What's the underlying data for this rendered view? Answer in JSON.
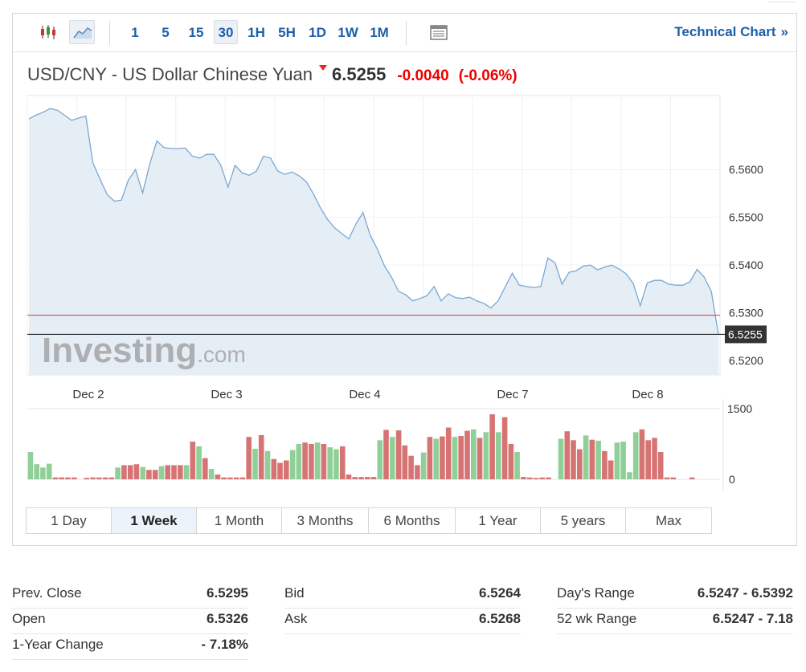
{
  "toolbar": {
    "chart_type_icons": [
      "candlestick-icon",
      "area-chart-icon"
    ],
    "selected_chart_type": "area-chart-icon",
    "intervals": [
      "1",
      "5",
      "15",
      "30",
      "1H",
      "5H",
      "1D",
      "1W",
      "1M"
    ],
    "selected_interval": "30",
    "settings_icon": "table-icon",
    "technical_link": "Technical Chart",
    "technical_arrow": "»"
  },
  "header": {
    "name": "USD/CNY - US Dollar Chinese Yuan",
    "last": "6.5255",
    "change": "-0.0040",
    "change_pct": "(-0.06%)",
    "direction_icon": "down-arrow-icon"
  },
  "watermark": {
    "brand": "Investing",
    "suffix": ".com"
  },
  "colors": {
    "line": "#7aa7d2",
    "area": "#e6eef5",
    "prev_close_line": "#d33",
    "last_line": "#222",
    "vol_up": "#8fcf98",
    "vol_down": "#d67373",
    "accent": "#1c5fab",
    "negative": "#e00"
  },
  "chart_data": {
    "type": "line",
    "title": "USD/CNY - US Dollar Chinese Yuan",
    "x_labels": [
      "Dec 2",
      "Dec 3",
      "Dec 4",
      "Dec 7",
      "Dec 8"
    ],
    "ylim": [
      6.517,
      6.5755
    ],
    "y_ticks": [
      "6.5600",
      "6.5500",
      "6.5400",
      "6.5300",
      "6.5200"
    ],
    "y_tick_values": [
      6.56,
      6.55,
      6.54,
      6.53,
      6.52
    ],
    "prev_close": 6.5295,
    "last_value": 6.5255,
    "last_label": "6.5255",
    "series": [
      {
        "values": [
          6.5706,
          6.5714,
          6.572,
          6.5728,
          6.5724,
          6.5714,
          6.5703,
          6.5708,
          6.5712,
          6.5614,
          6.558,
          6.5548,
          6.5534,
          6.5536,
          6.5578,
          6.56,
          6.5551,
          6.5612,
          6.566,
          6.5646,
          6.5644,
          6.5644,
          6.5645,
          6.5628,
          6.5624,
          6.5632,
          6.5632,
          6.5609,
          6.5563,
          6.5609,
          6.5593,
          6.5588,
          6.5597,
          6.5628,
          6.5624,
          6.5597,
          6.559,
          6.5595,
          6.5587,
          6.5575,
          6.555,
          6.552,
          6.5496,
          6.5478,
          6.5466,
          6.5455,
          6.5486,
          6.551,
          6.5463,
          6.5434,
          6.5399,
          6.5375,
          6.5345,
          6.5338,
          6.5325,
          6.533,
          6.5336,
          6.5355,
          6.5325,
          6.534,
          6.5332,
          6.533,
          6.5333,
          6.5325,
          6.532,
          6.531,
          6.5325,
          6.5354,
          6.5383,
          6.5358,
          6.5355,
          6.5353,
          6.5355,
          6.5415,
          6.5405,
          6.536,
          6.5385,
          6.5388,
          6.5398,
          6.54,
          6.539,
          6.5396,
          6.54,
          6.5392,
          6.5382,
          6.5362,
          6.5315,
          6.5363,
          6.5368,
          6.5368,
          6.536,
          6.5358,
          6.5358,
          6.5365,
          6.5391,
          6.5375,
          6.5345,
          6.5255
        ]
      }
    ],
    "volume": {
      "ylim": [
        0,
        1500
      ],
      "y_ticks": [
        "1500",
        "0"
      ],
      "y_tick_values": [
        1500,
        0
      ],
      "bars": [
        {
          "v": 580,
          "up": true
        },
        {
          "v": 320,
          "up": true
        },
        {
          "v": 250,
          "up": true
        },
        {
          "v": 330,
          "up": true
        },
        {
          "v": 40,
          "up": false
        },
        {
          "v": 40,
          "up": false
        },
        {
          "v": 40,
          "up": false
        },
        {
          "v": 40,
          "up": false
        },
        {
          "v": 0,
          "up": false
        },
        {
          "v": 30,
          "up": false
        },
        {
          "v": 40,
          "up": false
        },
        {
          "v": 40,
          "up": false
        },
        {
          "v": 40,
          "up": false
        },
        {
          "v": 40,
          "up": false
        },
        {
          "v": 250,
          "up": true
        },
        {
          "v": 300,
          "up": false
        },
        {
          "v": 300,
          "up": false
        },
        {
          "v": 320,
          "up": false
        },
        {
          "v": 260,
          "up": true
        },
        {
          "v": 200,
          "up": false
        },
        {
          "v": 200,
          "up": false
        },
        {
          "v": 280,
          "up": true
        },
        {
          "v": 300,
          "up": false
        },
        {
          "v": 300,
          "up": false
        },
        {
          "v": 300,
          "up": false
        },
        {
          "v": 300,
          "up": true
        },
        {
          "v": 800,
          "up": false
        },
        {
          "v": 700,
          "up": true
        },
        {
          "v": 450,
          "up": false
        },
        {
          "v": 220,
          "up": true
        },
        {
          "v": 100,
          "up": false
        },
        {
          "v": 40,
          "up": false
        },
        {
          "v": 40,
          "up": false
        },
        {
          "v": 40,
          "up": false
        },
        {
          "v": 40,
          "up": false
        },
        {
          "v": 900,
          "up": false
        },
        {
          "v": 650,
          "up": true
        },
        {
          "v": 940,
          "up": false
        },
        {
          "v": 600,
          "up": true
        },
        {
          "v": 430,
          "up": false
        },
        {
          "v": 350,
          "up": false
        },
        {
          "v": 400,
          "up": false
        },
        {
          "v": 620,
          "up": true
        },
        {
          "v": 750,
          "up": true
        },
        {
          "v": 780,
          "up": false
        },
        {
          "v": 750,
          "up": false
        },
        {
          "v": 780,
          "up": true
        },
        {
          "v": 750,
          "up": false
        },
        {
          "v": 680,
          "up": true
        },
        {
          "v": 640,
          "up": true
        },
        {
          "v": 700,
          "up": false
        },
        {
          "v": 100,
          "up": false
        },
        {
          "v": 50,
          "up": false
        },
        {
          "v": 50,
          "up": false
        },
        {
          "v": 50,
          "up": false
        },
        {
          "v": 50,
          "up": false
        },
        {
          "v": 830,
          "up": true
        },
        {
          "v": 1050,
          "up": false
        },
        {
          "v": 900,
          "up": true
        },
        {
          "v": 1040,
          "up": false
        },
        {
          "v": 720,
          "up": false
        },
        {
          "v": 500,
          "up": false
        },
        {
          "v": 300,
          "up": false
        },
        {
          "v": 570,
          "up": true
        },
        {
          "v": 900,
          "up": false
        },
        {
          "v": 860,
          "up": true
        },
        {
          "v": 910,
          "up": false
        },
        {
          "v": 1100,
          "up": false
        },
        {
          "v": 900,
          "up": true
        },
        {
          "v": 920,
          "up": false
        },
        {
          "v": 1030,
          "up": false
        },
        {
          "v": 1060,
          "up": true
        },
        {
          "v": 880,
          "up": false
        },
        {
          "v": 1000,
          "up": true
        },
        {
          "v": 1380,
          "up": false
        },
        {
          "v": 1000,
          "up": true
        },
        {
          "v": 1320,
          "up": false
        },
        {
          "v": 750,
          "up": false
        },
        {
          "v": 580,
          "up": true
        },
        {
          "v": 50,
          "up": false
        },
        {
          "v": 40,
          "up": false
        },
        {
          "v": 30,
          "up": false
        },
        {
          "v": 40,
          "up": false
        },
        {
          "v": 40,
          "up": false
        },
        {
          "v": 0,
          "up": false
        },
        {
          "v": 860,
          "up": true
        },
        {
          "v": 1020,
          "up": false
        },
        {
          "v": 830,
          "up": false
        },
        {
          "v": 640,
          "up": false
        },
        {
          "v": 930,
          "up": true
        },
        {
          "v": 840,
          "up": false
        },
        {
          "v": 820,
          "up": true
        },
        {
          "v": 600,
          "up": false
        },
        {
          "v": 400,
          "up": false
        },
        {
          "v": 780,
          "up": true
        },
        {
          "v": 800,
          "up": true
        },
        {
          "v": 150,
          "up": true
        },
        {
          "v": 1000,
          "up": true
        },
        {
          "v": 1060,
          "up": false
        },
        {
          "v": 830,
          "up": false
        },
        {
          "v": 880,
          "up": false
        },
        {
          "v": 580,
          "up": false
        },
        {
          "v": 40,
          "up": false
        },
        {
          "v": 40,
          "up": false
        },
        {
          "v": 0,
          "up": false
        },
        {
          "v": 0,
          "up": false
        },
        {
          "v": 40,
          "up": false
        },
        {
          "v": 0,
          "up": false
        },
        {
          "v": 0,
          "up": false
        },
        {
          "v": 0,
          "up": false
        },
        {
          "v": 0,
          "up": false
        }
      ]
    }
  },
  "ranges": [
    "1 Day",
    "1 Week",
    "1 Month",
    "3 Months",
    "6 Months",
    "1 Year",
    "5 years",
    "Max"
  ],
  "selected_range": "1 Week",
  "stats": [
    [
      {
        "label": "Prev. Close",
        "value": "6.5295"
      },
      {
        "label": "Open",
        "value": "6.5326"
      },
      {
        "label": "1-Year Change",
        "value": "- 7.18%"
      }
    ],
    [
      {
        "label": "Bid",
        "value": "6.5264"
      },
      {
        "label": "Ask",
        "value": "6.5268"
      }
    ],
    [
      {
        "label": "Day's Range",
        "value": "6.5247 - 6.5392"
      },
      {
        "label": "52 wk Range",
        "value": "6.5247 - 7.18"
      }
    ]
  ]
}
